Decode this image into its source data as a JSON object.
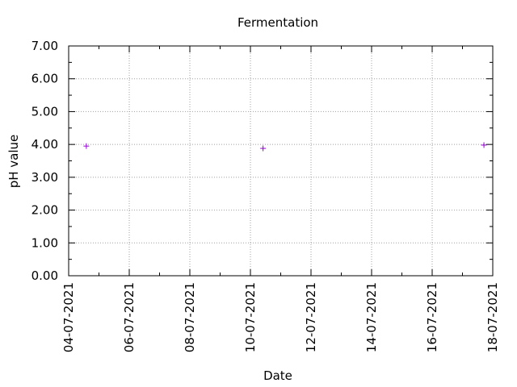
{
  "chart_data": {
    "type": "scatter",
    "title": "Fermentation",
    "xlabel": "Date",
    "ylabel": "pH value",
    "x_axis_type": "date",
    "xlim": [
      "04-07-2021",
      "18-07-2021"
    ],
    "ylim": [
      0,
      7
    ],
    "x_ticks": [
      "04-07-2021",
      "06-07-2021",
      "08-07-2021",
      "10-07-2021",
      "12-07-2021",
      "14-07-2021",
      "16-07-2021",
      "18-07-2021"
    ],
    "y_ticks": [
      "0.00",
      "1.00",
      "2.00",
      "3.00",
      "4.00",
      "5.00",
      "6.00",
      "7.00"
    ],
    "grid": true,
    "legend": "none",
    "marker": "plus",
    "marker_color": "#9400d3",
    "series": [
      {
        "points": [
          {
            "x": "04-07-2021 14:00",
            "y": 3.95
          },
          {
            "x": "10-07-2021 10:00",
            "y": 3.88
          },
          {
            "x": "17-07-2021 17:00",
            "y": 3.98
          }
        ]
      }
    ]
  }
}
